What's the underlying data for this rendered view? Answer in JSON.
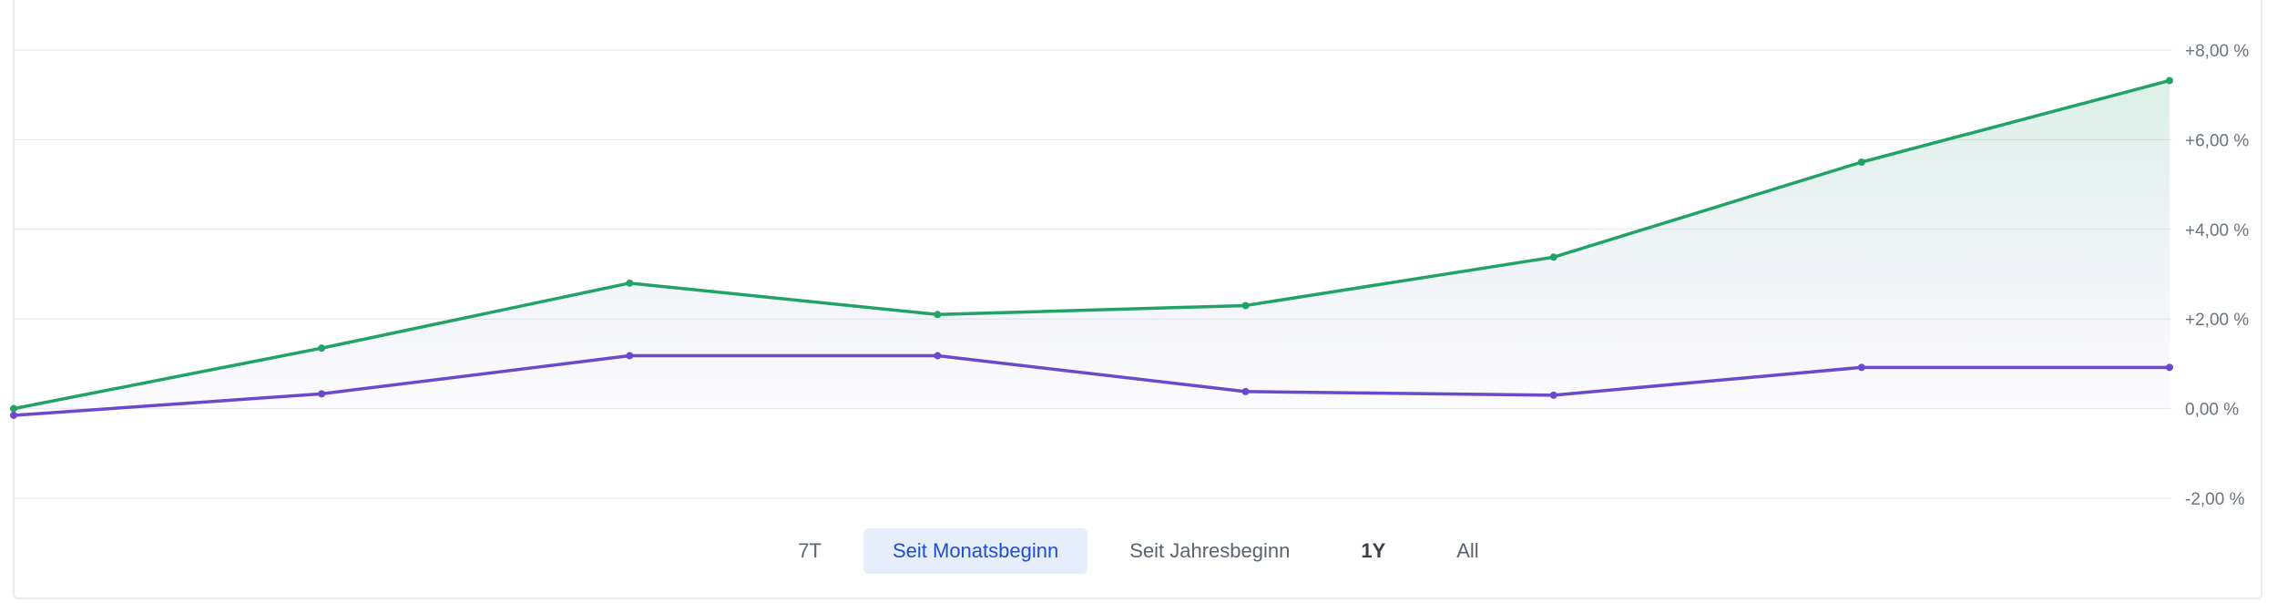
{
  "chart_data": {
    "type": "line",
    "x": [
      1,
      2,
      3,
      4,
      5,
      6,
      7,
      8
    ],
    "y_ticks": [
      "+8,00 %",
      "+6,00 %",
      "+4,00 %",
      "+2,00 %",
      "0,00 %",
      "-2,00 %"
    ],
    "ylim": [
      -2,
      8
    ],
    "grid": true,
    "series": [
      {
        "color": "#21a366",
        "values": [
          0.0,
          1.35,
          2.8,
          2.1,
          2.3,
          3.38,
          5.5,
          7.32
        ],
        "area_fill": true
      },
      {
        "color": "#6a49cc",
        "values": [
          -0.15,
          0.33,
          1.18,
          1.18,
          0.38,
          0.3,
          0.92,
          0.92
        ],
        "area_fill": false
      }
    ]
  },
  "range_selector": {
    "options": [
      {
        "label": "7T",
        "active": false,
        "bold": false
      },
      {
        "label": "Seit Monatsbeginn",
        "active": true,
        "bold": false
      },
      {
        "label": "Seit Jahresbeginn",
        "active": false,
        "bold": false
      },
      {
        "label": "1Y",
        "active": false,
        "bold": true
      },
      {
        "label": "All",
        "active": false,
        "bold": false
      }
    ]
  },
  "colors": {
    "grid": "#e5e7eb",
    "active_button_bg": "#e6eefb",
    "active_button_text": "#1f4fcf"
  }
}
